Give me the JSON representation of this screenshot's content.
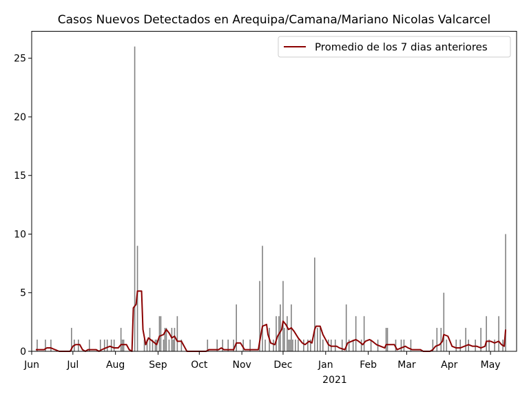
{
  "chart_data": {
    "type": "bar",
    "title": "Casos Nuevos Detectados en Arequipa/Camana/Mariano Nicolas Valcarcel",
    "xlabel": "",
    "ylabel": "",
    "x_start": "2020-06-01",
    "x_end": "2021-05-20",
    "ylim": [
      0,
      27.3
    ],
    "yticks": [
      0,
      5,
      10,
      15,
      20,
      25
    ],
    "ytick_labels": [
      "0",
      "5",
      "10",
      "15",
      "20",
      "25"
    ],
    "xticks": [
      {
        "date": "2020-06-01",
        "label": "Jun"
      },
      {
        "date": "2020-07-01",
        "label": "Jul"
      },
      {
        "date": "2020-08-01",
        "label": "Aug"
      },
      {
        "date": "2020-09-01",
        "label": "Sep"
      },
      {
        "date": "2020-10-01",
        "label": "Oct"
      },
      {
        "date": "2020-11-01",
        "label": "Nov"
      },
      {
        "date": "2020-12-01",
        "label": "Dec"
      },
      {
        "date": "2021-01-01",
        "label": "Jan"
      },
      {
        "date": "2021-02-01",
        "label": "Feb"
      },
      {
        "date": "2021-03-01",
        "label": "Mar"
      },
      {
        "date": "2021-04-01",
        "label": "Apr"
      },
      {
        "date": "2021-05-01",
        "label": "May"
      }
    ],
    "year_label": "2021",
    "grid": false,
    "legend_position": "upper right",
    "bar_color": "#808080",
    "line_color": "#8b0000",
    "series": [
      {
        "name": "",
        "type": "bar",
        "points": [
          [
            "2020-06-05",
            1
          ],
          [
            "2020-06-11",
            1
          ],
          [
            "2020-06-15",
            1
          ],
          [
            "2020-06-30",
            2
          ],
          [
            "2020-07-02",
            1
          ],
          [
            "2020-07-05",
            1
          ],
          [
            "2020-07-13",
            1
          ],
          [
            "2020-07-21",
            1
          ],
          [
            "2020-07-24",
            1
          ],
          [
            "2020-07-26",
            1
          ],
          [
            "2020-07-29",
            1
          ],
          [
            "2020-07-31",
            1
          ],
          [
            "2020-08-05",
            2
          ],
          [
            "2020-08-06",
            1
          ],
          [
            "2020-08-07",
            1
          ],
          [
            "2020-08-15",
            26
          ],
          [
            "2020-08-17",
            9
          ],
          [
            "2020-08-22",
            1
          ],
          [
            "2020-08-24",
            1
          ],
          [
            "2020-08-26",
            2
          ],
          [
            "2020-08-28",
            1
          ],
          [
            "2020-08-30",
            1
          ],
          [
            "2020-08-31",
            1
          ],
          [
            "2020-09-02",
            3
          ],
          [
            "2020-09-03",
            3
          ],
          [
            "2020-09-05",
            1
          ],
          [
            "2020-09-06",
            2
          ],
          [
            "2020-09-07",
            2
          ],
          [
            "2020-09-09",
            1
          ],
          [
            "2020-09-11",
            2
          ],
          [
            "2020-09-12",
            1
          ],
          [
            "2020-09-13",
            2
          ],
          [
            "2020-09-15",
            3
          ],
          [
            "2020-09-18",
            1
          ],
          [
            "2020-10-07",
            1
          ],
          [
            "2020-10-14",
            1
          ],
          [
            "2020-10-18",
            1
          ],
          [
            "2020-10-22",
            1
          ],
          [
            "2020-10-26",
            1
          ],
          [
            "2020-10-28",
            4
          ],
          [
            "2020-11-02",
            1
          ],
          [
            "2020-11-07",
            1
          ],
          [
            "2020-11-14",
            6
          ],
          [
            "2020-11-16",
            9
          ],
          [
            "2020-11-18",
            1
          ],
          [
            "2020-11-21",
            2
          ],
          [
            "2020-11-24",
            1
          ],
          [
            "2020-11-26",
            3
          ],
          [
            "2020-11-28",
            3
          ],
          [
            "2020-11-29",
            4
          ],
          [
            "2020-12-01",
            6
          ],
          [
            "2020-12-02",
            2
          ],
          [
            "2020-12-04",
            3
          ],
          [
            "2020-12-05",
            1
          ],
          [
            "2020-12-06",
            1
          ],
          [
            "2020-12-07",
            4
          ],
          [
            "2020-12-08",
            1
          ],
          [
            "2020-12-10",
            1
          ],
          [
            "2020-12-12",
            1
          ],
          [
            "2020-12-16",
            1
          ],
          [
            "2020-12-19",
            1
          ],
          [
            "2020-12-21",
            1
          ],
          [
            "2020-12-24",
            8
          ],
          [
            "2020-12-26",
            2
          ],
          [
            "2020-12-28",
            2
          ],
          [
            "2020-12-30",
            1
          ],
          [
            "2021-01-03",
            1
          ],
          [
            "2021-01-05",
            1
          ],
          [
            "2021-01-08",
            1
          ],
          [
            "2021-01-13",
            1
          ],
          [
            "2021-01-16",
            4
          ],
          [
            "2021-01-18",
            1
          ],
          [
            "2021-01-21",
            1
          ],
          [
            "2021-01-23",
            3
          ],
          [
            "2021-01-27",
            1
          ],
          [
            "2021-01-29",
            3
          ],
          [
            "2021-02-03",
            1
          ],
          [
            "2021-02-08",
            1
          ],
          [
            "2021-02-14",
            2
          ],
          [
            "2021-02-15",
            2
          ],
          [
            "2021-02-21",
            1
          ],
          [
            "2021-02-25",
            1
          ],
          [
            "2021-02-27",
            1
          ],
          [
            "2021-03-04",
            1
          ],
          [
            "2021-03-20",
            1
          ],
          [
            "2021-03-23",
            2
          ],
          [
            "2021-03-26",
            2
          ],
          [
            "2021-03-28",
            5
          ],
          [
            "2021-03-30",
            1
          ],
          [
            "2021-04-06",
            1
          ],
          [
            "2021-04-09",
            1
          ],
          [
            "2021-04-13",
            2
          ],
          [
            "2021-04-15",
            1
          ],
          [
            "2021-04-20",
            1
          ],
          [
            "2021-04-24",
            2
          ],
          [
            "2021-04-28",
            3
          ],
          [
            "2021-04-30",
            1
          ],
          [
            "2021-05-04",
            1
          ],
          [
            "2021-05-07",
            3
          ],
          [
            "2021-05-10",
            1
          ],
          [
            "2021-05-12",
            10
          ]
        ]
      },
      {
        "name": "Promedio de los 7 dias anteriores",
        "type": "line",
        "points": [
          [
            "2020-06-04",
            0.14
          ],
          [
            "2020-06-10",
            0.14
          ],
          [
            "2020-06-12",
            0.29
          ],
          [
            "2020-06-15",
            0.29
          ],
          [
            "2020-06-18",
            0.14
          ],
          [
            "2020-06-21",
            0.0
          ],
          [
            "2020-06-29",
            0.0
          ],
          [
            "2020-07-01",
            0.43
          ],
          [
            "2020-07-03",
            0.57
          ],
          [
            "2020-07-06",
            0.57
          ],
          [
            "2020-07-08",
            0.14
          ],
          [
            "2020-07-10",
            0.0
          ],
          [
            "2020-07-12",
            0.14
          ],
          [
            "2020-07-18",
            0.14
          ],
          [
            "2020-07-20",
            0.0
          ],
          [
            "2020-07-22",
            0.14
          ],
          [
            "2020-07-25",
            0.29
          ],
          [
            "2020-07-28",
            0.43
          ],
          [
            "2020-07-31",
            0.29
          ],
          [
            "2020-08-03",
            0.29
          ],
          [
            "2020-08-05",
            0.57
          ],
          [
            "2020-08-09",
            0.57
          ],
          [
            "2020-08-11",
            0.14
          ],
          [
            "2020-08-13",
            0.0
          ],
          [
            "2020-08-14",
            3.7
          ],
          [
            "2020-08-16",
            4.0
          ],
          [
            "2020-08-17",
            5.14
          ],
          [
            "2020-08-20",
            5.14
          ],
          [
            "2020-08-21",
            1.86
          ],
          [
            "2020-08-23",
            0.57
          ],
          [
            "2020-08-25",
            1.14
          ],
          [
            "2020-08-28",
            0.86
          ],
          [
            "2020-08-31",
            0.57
          ],
          [
            "2020-09-02",
            1.29
          ],
          [
            "2020-09-05",
            1.43
          ],
          [
            "2020-09-07",
            1.86
          ],
          [
            "2020-09-09",
            1.57
          ],
          [
            "2020-09-11",
            1.14
          ],
          [
            "2020-09-13",
            1.29
          ],
          [
            "2020-09-15",
            0.86
          ],
          [
            "2020-09-18",
            0.86
          ],
          [
            "2020-09-22",
            0.0
          ],
          [
            "2020-10-06",
            0.0
          ],
          [
            "2020-10-08",
            0.14
          ],
          [
            "2020-10-15",
            0.14
          ],
          [
            "2020-10-17",
            0.29
          ],
          [
            "2020-10-19",
            0.14
          ],
          [
            "2020-10-23",
            0.14
          ],
          [
            "2020-10-26",
            0.14
          ],
          [
            "2020-10-28",
            0.71
          ],
          [
            "2020-10-31",
            0.71
          ],
          [
            "2020-11-03",
            0.14
          ],
          [
            "2020-11-05",
            0.14
          ],
          [
            "2020-11-09",
            0.14
          ],
          [
            "2020-11-13",
            0.14
          ],
          [
            "2020-11-14",
            0.86
          ],
          [
            "2020-11-16",
            2.14
          ],
          [
            "2020-11-19",
            2.29
          ],
          [
            "2020-11-20",
            1.43
          ],
          [
            "2020-11-22",
            0.71
          ],
          [
            "2020-11-25",
            0.57
          ],
          [
            "2020-11-27",
            1.29
          ],
          [
            "2020-11-30",
            1.86
          ],
          [
            "2020-12-01",
            2.57
          ],
          [
            "2020-12-03",
            2.29
          ],
          [
            "2020-12-05",
            1.86
          ],
          [
            "2020-12-07",
            2.0
          ],
          [
            "2020-12-09",
            1.71
          ],
          [
            "2020-12-12",
            1.14
          ],
          [
            "2020-12-15",
            0.71
          ],
          [
            "2020-12-17",
            0.57
          ],
          [
            "2020-12-20",
            0.86
          ],
          [
            "2020-12-22",
            0.71
          ],
          [
            "2020-12-24",
            1.86
          ],
          [
            "2020-12-25",
            2.14
          ],
          [
            "2020-12-28",
            2.14
          ],
          [
            "2020-12-30",
            1.43
          ],
          [
            "2021-01-01",
            1.0
          ],
          [
            "2021-01-03",
            0.57
          ],
          [
            "2021-01-05",
            0.43
          ],
          [
            "2021-01-09",
            0.43
          ],
          [
            "2021-01-11",
            0.29
          ],
          [
            "2021-01-15",
            0.14
          ],
          [
            "2021-01-17",
            0.71
          ],
          [
            "2021-01-20",
            0.86
          ],
          [
            "2021-01-23",
            1.0
          ],
          [
            "2021-01-25",
            0.86
          ],
          [
            "2021-01-28",
            0.57
          ],
          [
            "2021-01-30",
            0.86
          ],
          [
            "2021-02-02",
            1.0
          ],
          [
            "2021-02-04",
            0.86
          ],
          [
            "2021-02-07",
            0.57
          ],
          [
            "2021-02-10",
            0.43
          ],
          [
            "2021-02-13",
            0.29
          ],
          [
            "2021-02-14",
            0.57
          ],
          [
            "2021-02-20",
            0.57
          ],
          [
            "2021-02-22",
            0.14
          ],
          [
            "2021-02-25",
            0.29
          ],
          [
            "2021-02-28",
            0.43
          ],
          [
            "2021-03-02",
            0.29
          ],
          [
            "2021-03-05",
            0.14
          ],
          [
            "2021-03-11",
            0.14
          ],
          [
            "2021-03-13",
            0.0
          ],
          [
            "2021-03-18",
            0.0
          ],
          [
            "2021-03-20",
            0.14
          ],
          [
            "2021-03-22",
            0.43
          ],
          [
            "2021-03-25",
            0.57
          ],
          [
            "2021-03-27",
            0.86
          ],
          [
            "2021-03-28",
            1.43
          ],
          [
            "2021-03-31",
            1.29
          ],
          [
            "2021-04-03",
            0.43
          ],
          [
            "2021-04-06",
            0.29
          ],
          [
            "2021-04-09",
            0.29
          ],
          [
            "2021-04-12",
            0.43
          ],
          [
            "2021-04-15",
            0.57
          ],
          [
            "2021-04-18",
            0.43
          ],
          [
            "2021-04-21",
            0.43
          ],
          [
            "2021-04-24",
            0.29
          ],
          [
            "2021-04-27",
            0.43
          ],
          [
            "2021-04-28",
            0.86
          ],
          [
            "2021-05-01",
            0.86
          ],
          [
            "2021-05-04",
            0.71
          ],
          [
            "2021-05-07",
            0.86
          ],
          [
            "2021-05-09",
            0.57
          ],
          [
            "2021-05-11",
            0.43
          ],
          [
            "2021-05-12",
            1.86
          ]
        ]
      }
    ]
  }
}
